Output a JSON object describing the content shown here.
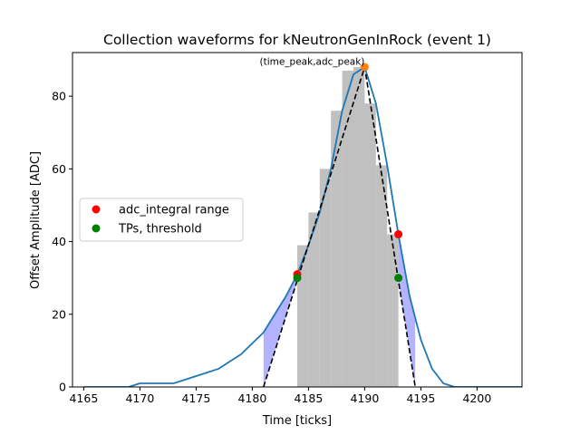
{
  "chart_data": {
    "type": "line",
    "title": "Collection waveforms for kNeutronGenInRock (event 1)",
    "xlabel": "Time [ticks]",
    "ylabel": "Offset Amplitude [ADC]",
    "xlim": [
      4164,
      4204
    ],
    "ylim": [
      0,
      92
    ],
    "xticks": [
      4165,
      4170,
      4175,
      4180,
      4185,
      4190,
      4195,
      4200
    ],
    "yticks": [
      0,
      20,
      40,
      60,
      80
    ],
    "grid": false,
    "legend_placement": "center-left",
    "waveform": {
      "color": "#1f77b4",
      "x": [
        4165,
        4166,
        4167,
        4168,
        4169,
        4170,
        4171,
        4172,
        4173,
        4174,
        4175,
        4176,
        4177,
        4178,
        4179,
        4180,
        4181,
        4182,
        4183,
        4184,
        4185,
        4186,
        4187,
        4188,
        4189,
        4190,
        4191,
        4192,
        4193,
        4194,
        4195,
        4196,
        4197,
        4198,
        4199,
        4200,
        4201,
        4202,
        4203,
        4204
      ],
      "y": [
        0,
        0,
        0,
        0,
        0,
        1,
        1,
        1,
        1,
        2,
        3,
        4,
        5,
        7,
        9,
        12,
        15,
        20,
        25,
        31,
        39,
        48,
        60,
        76,
        86,
        88,
        78,
        61,
        42,
        25,
        13,
        5,
        1,
        0,
        0,
        0,
        0,
        0,
        0,
        0
      ]
    },
    "histogram": {
      "color": "#bdbdbd",
      "bins": [
        {
          "x0": 4184,
          "x1": 4185,
          "y": 39
        },
        {
          "x0": 4185,
          "x1": 4186,
          "y": 48
        },
        {
          "x0": 4186,
          "x1": 4187,
          "y": 60
        },
        {
          "x0": 4187,
          "x1": 4188,
          "y": 76
        },
        {
          "x0": 4188,
          "x1": 4189,
          "y": 87
        },
        {
          "x0": 4189,
          "x1": 4190,
          "y": 88
        },
        {
          "x0": 4190,
          "x1": 4191,
          "y": 78
        },
        {
          "x0": 4191,
          "x1": 4192,
          "y": 61
        },
        {
          "x0": 4192,
          "x1": 4193,
          "y": 42
        }
      ]
    },
    "triangle": {
      "color": "#000000",
      "points": [
        [
          4181,
          0
        ],
        [
          4190,
          88
        ],
        [
          4194.5,
          0
        ]
      ]
    },
    "shaded_regions": {
      "color": "#9999ff",
      "left": {
        "x_start": 4181,
        "x_end": 4184
      },
      "right": {
        "x_start": 4193,
        "x_end": 4194.5
      }
    },
    "peak_marker": {
      "x": 4190,
      "y": 88,
      "color": "#ff7f0e"
    },
    "peak_annotation": "(time_peak,adc_peak)",
    "series": [
      {
        "name": "adc_integral range",
        "color": "#ff0000",
        "points": [
          [
            4184,
            31
          ],
          [
            4193,
            42
          ]
        ]
      },
      {
        "name": "TPs, threshold",
        "color": "#008000",
        "points": [
          [
            4184,
            30
          ],
          [
            4193,
            30
          ]
        ]
      }
    ]
  }
}
